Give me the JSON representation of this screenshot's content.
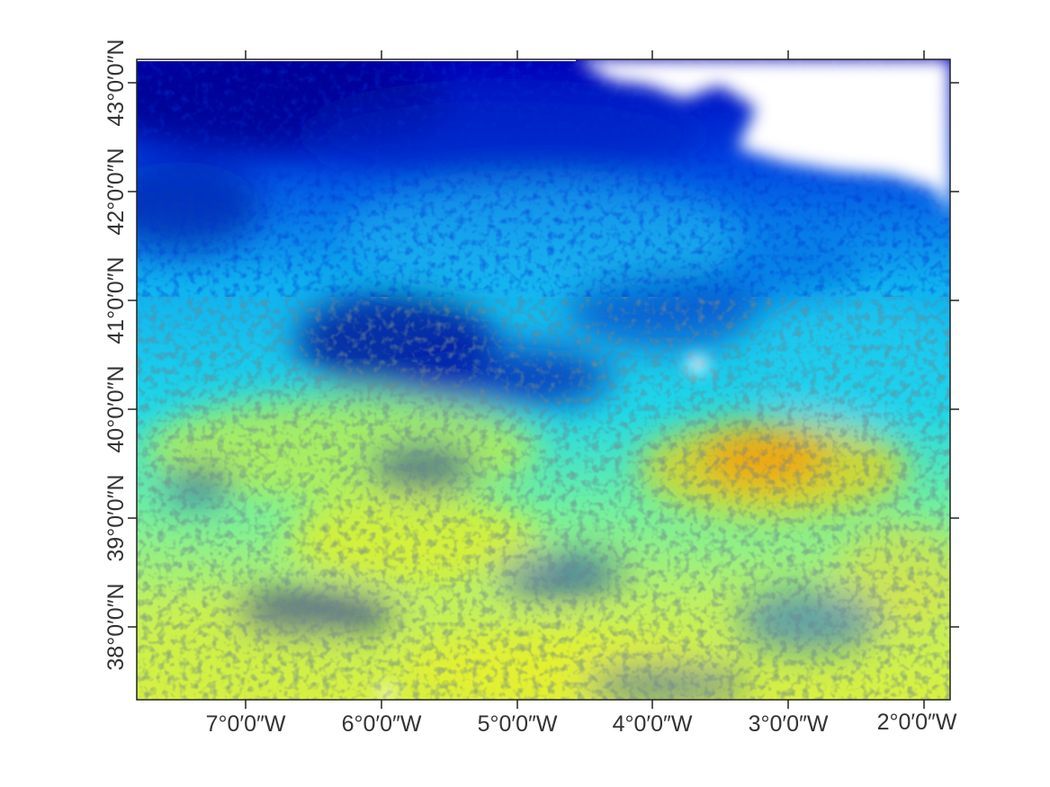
{
  "map": {
    "longitude_labels": [
      "7°0′0″W",
      "6°0′0″W",
      "5°0′0″W",
      "4°0′0″W",
      "3°0′0″W",
      "2°0′0″W"
    ],
    "latitude_labels": [
      "38°0′0″N",
      "39°0′0″N",
      "40°0′0″N",
      "41°0′0″N",
      "42°0′0″N",
      "43°0′0″N"
    ],
    "colormap": [
      "#00008f",
      "#0000ff",
      "#0080ff",
      "#00ffff",
      "#80ff80",
      "#ffff00",
      "#ff8000",
      "#ff0000"
    ],
    "frame_color": "#222222",
    "no_data_color": "#ffffff"
  }
}
